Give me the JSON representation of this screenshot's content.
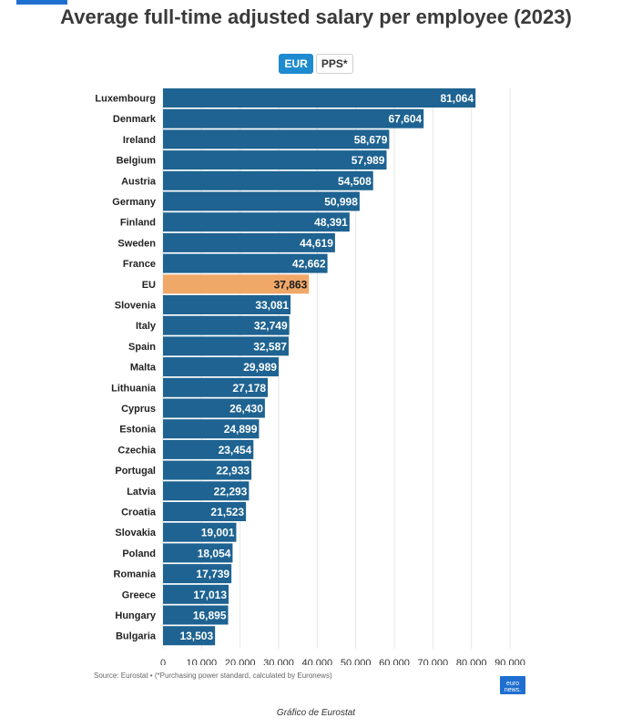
{
  "header": {
    "title": "Average full-time adjusted salary per employee (2023)"
  },
  "toggles": {
    "eur": "EUR",
    "pps": "PPS*"
  },
  "chart_data": {
    "type": "bar",
    "orientation": "horizontal",
    "title": "Average full-time adjusted salary per employee (2023)",
    "categories": [
      "Luxembourg",
      "Denmark",
      "Ireland",
      "Belgium",
      "Austria",
      "Germany",
      "Finland",
      "Sweden",
      "France",
      "EU",
      "Slovenia",
      "Italy",
      "Spain",
      "Malta",
      "Lithuania",
      "Cyprus",
      "Estonia",
      "Czechia",
      "Portugal",
      "Latvia",
      "Croatia",
      "Slovakia",
      "Poland",
      "Romania",
      "Greece",
      "Hungary",
      "Bulgaria"
    ],
    "values": [
      81064,
      67604,
      58679,
      57989,
      54508,
      50998,
      48391,
      44619,
      42662,
      37863,
      33081,
      32749,
      32587,
      29989,
      27178,
      26430,
      24899,
      23454,
      22933,
      22293,
      21523,
      19001,
      18054,
      17739,
      17013,
      16895,
      13503
    ],
    "value_labels": [
      "81,064",
      "67,604",
      "58,679",
      "57,989",
      "54,508",
      "50,998",
      "48,391",
      "44,619",
      "42,662",
      "37,863",
      "33,081",
      "32,749",
      "32,587",
      "29,989",
      "27,178",
      "26,430",
      "24,899",
      "23,454",
      "22,933",
      "22,293",
      "21,523",
      "19,001",
      "18,054",
      "17,739",
      "17,013",
      "16,895",
      "13,503"
    ],
    "highlight": "EU",
    "xlim": [
      0,
      90000
    ],
    "xticks": [
      0,
      10000,
      20000,
      30000,
      40000,
      50000,
      60000,
      70000,
      80000,
      90000
    ],
    "xtick_labels": [
      "0",
      "10,000",
      "20,000",
      "30,000",
      "40,000",
      "50,000",
      "60,000",
      "70,000",
      "80,000",
      "90,000"
    ],
    "bar_color": "#1e6391",
    "highlight_color": "#f0a868",
    "grid": true
  },
  "footer": {
    "source": "Source: Eurostat • (*Purchasing power standard, calculated by Euronews)",
    "logo_text": "euro news.",
    "caption": "Gráfico de Eurostat"
  }
}
